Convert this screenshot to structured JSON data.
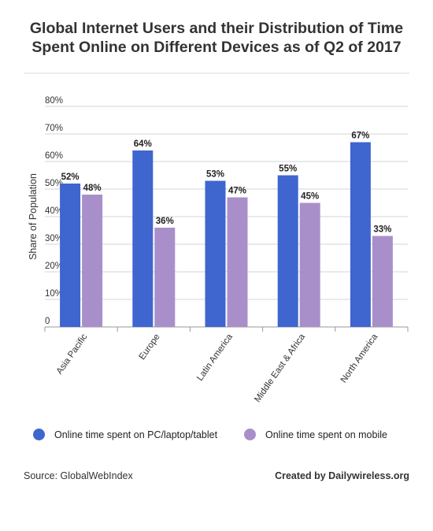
{
  "title_line1": "Global Internet Users and their Distribution of Time",
  "title_line2": "Spent Online on Different Devices as of Q2 of 2017",
  "footer": {
    "source": "Source: GlobalWebIndex",
    "credit": "Created by Dailywireless.org"
  },
  "chart_data": {
    "type": "bar",
    "title": "Global Internet Users and their Distribution of Time Spent Online on Different Devices as of Q2 of 2017",
    "ylabel": "Share of Population",
    "xlabel": "",
    "ylim": [
      0,
      80
    ],
    "yticks": [
      0,
      10,
      20,
      30,
      40,
      50,
      60,
      70,
      80
    ],
    "ytick_labels": [
      "0",
      "10%",
      "20%",
      "30%",
      "40%",
      "50%",
      "60%",
      "70%",
      "80%"
    ],
    "grid": true,
    "legend_position": "bottom",
    "categories": [
      "Asia Pacific",
      "Europe",
      "Latin America",
      "Middle East & Africa",
      "North America"
    ],
    "series": [
      {
        "name": "Online time spent on PC/laptop/tablet",
        "color": "#3f65cf",
        "values": [
          52,
          64,
          53,
          55,
          67
        ],
        "labels": [
          "52%",
          "64%",
          "53%",
          "55%",
          "67%"
        ]
      },
      {
        "name": "Online time spent on mobile",
        "color": "#a98fca",
        "values": [
          48,
          36,
          47,
          45,
          33
        ],
        "labels": [
          "48%",
          "36%",
          "47%",
          "45%",
          "33%"
        ]
      }
    ]
  }
}
